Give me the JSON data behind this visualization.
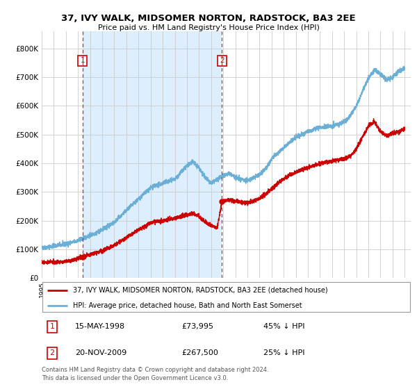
{
  "title": "37, IVY WALK, MIDSOMER NORTON, RADSTOCK, BA3 2EE",
  "subtitle": "Price paid vs. HM Land Registry's House Price Index (HPI)",
  "hpi_color": "#6baed6",
  "price_color": "#cc0000",
  "shade_color": "#ddeeff",
  "bg_color": "#ffffff",
  "grid_color": "#cccccc",
  "ylabel_ticks": [
    "£0",
    "£100K",
    "£200K",
    "£300K",
    "£400K",
    "£500K",
    "£600K",
    "£700K",
    "£800K"
  ],
  "ytick_vals": [
    0,
    100000,
    200000,
    300000,
    400000,
    500000,
    600000,
    700000,
    800000
  ],
  "ylim": [
    0,
    860000
  ],
  "xlim_start": 1995.0,
  "xlim_end": 2025.5,
  "xtick_years": [
    1995,
    1996,
    1997,
    1998,
    1999,
    2000,
    2001,
    2002,
    2003,
    2004,
    2005,
    2006,
    2007,
    2008,
    2009,
    2010,
    2011,
    2012,
    2013,
    2014,
    2015,
    2016,
    2017,
    2018,
    2019,
    2020,
    2021,
    2022,
    2023,
    2024,
    2025
  ],
  "purchase1_x": 1998.37,
  "purchase1_y": 73995,
  "purchase1_label": "1",
  "purchase1_date": "15-MAY-1998",
  "purchase1_price": "£73,995",
  "purchase1_hpi": "45% ↓ HPI",
  "purchase2_x": 2009.9,
  "purchase2_y": 267500,
  "purchase2_label": "2",
  "purchase2_date": "20-NOV-2009",
  "purchase2_price": "£267,500",
  "purchase2_hpi": "25% ↓ HPI",
  "legend_line1": "37, IVY WALK, MIDSOMER NORTON, RADSTOCK, BA3 2EE (detached house)",
  "legend_line2": "HPI: Average price, detached house, Bath and North East Somerset",
  "footnote": "Contains HM Land Registry data © Crown copyright and database right 2024.\nThis data is licensed under the Open Government Licence v3.0."
}
